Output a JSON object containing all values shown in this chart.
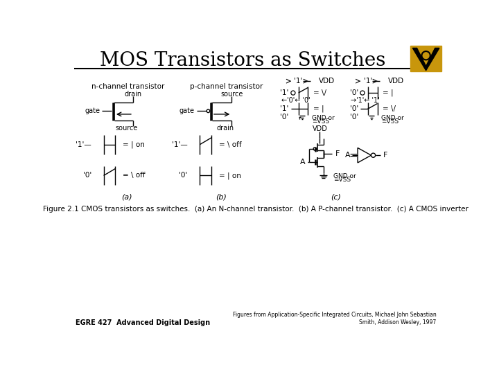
{
  "title": "MOS Transistors as Switches",
  "bg_color": "#ffffff",
  "figure_caption": "Figure 2.1 CMOS transistors as switches.  (a) An N-channel transistor.  (b) A P-channel transistor.  (c) A CMOS inverter",
  "footer_left": "EGRE 427  Advanced Digital Design",
  "label_a": "(a)",
  "label_b": "(b)",
  "label_c": "(c)",
  "nchan_label": "n-channel transistor",
  "pchan_label": "p-channel transistor"
}
